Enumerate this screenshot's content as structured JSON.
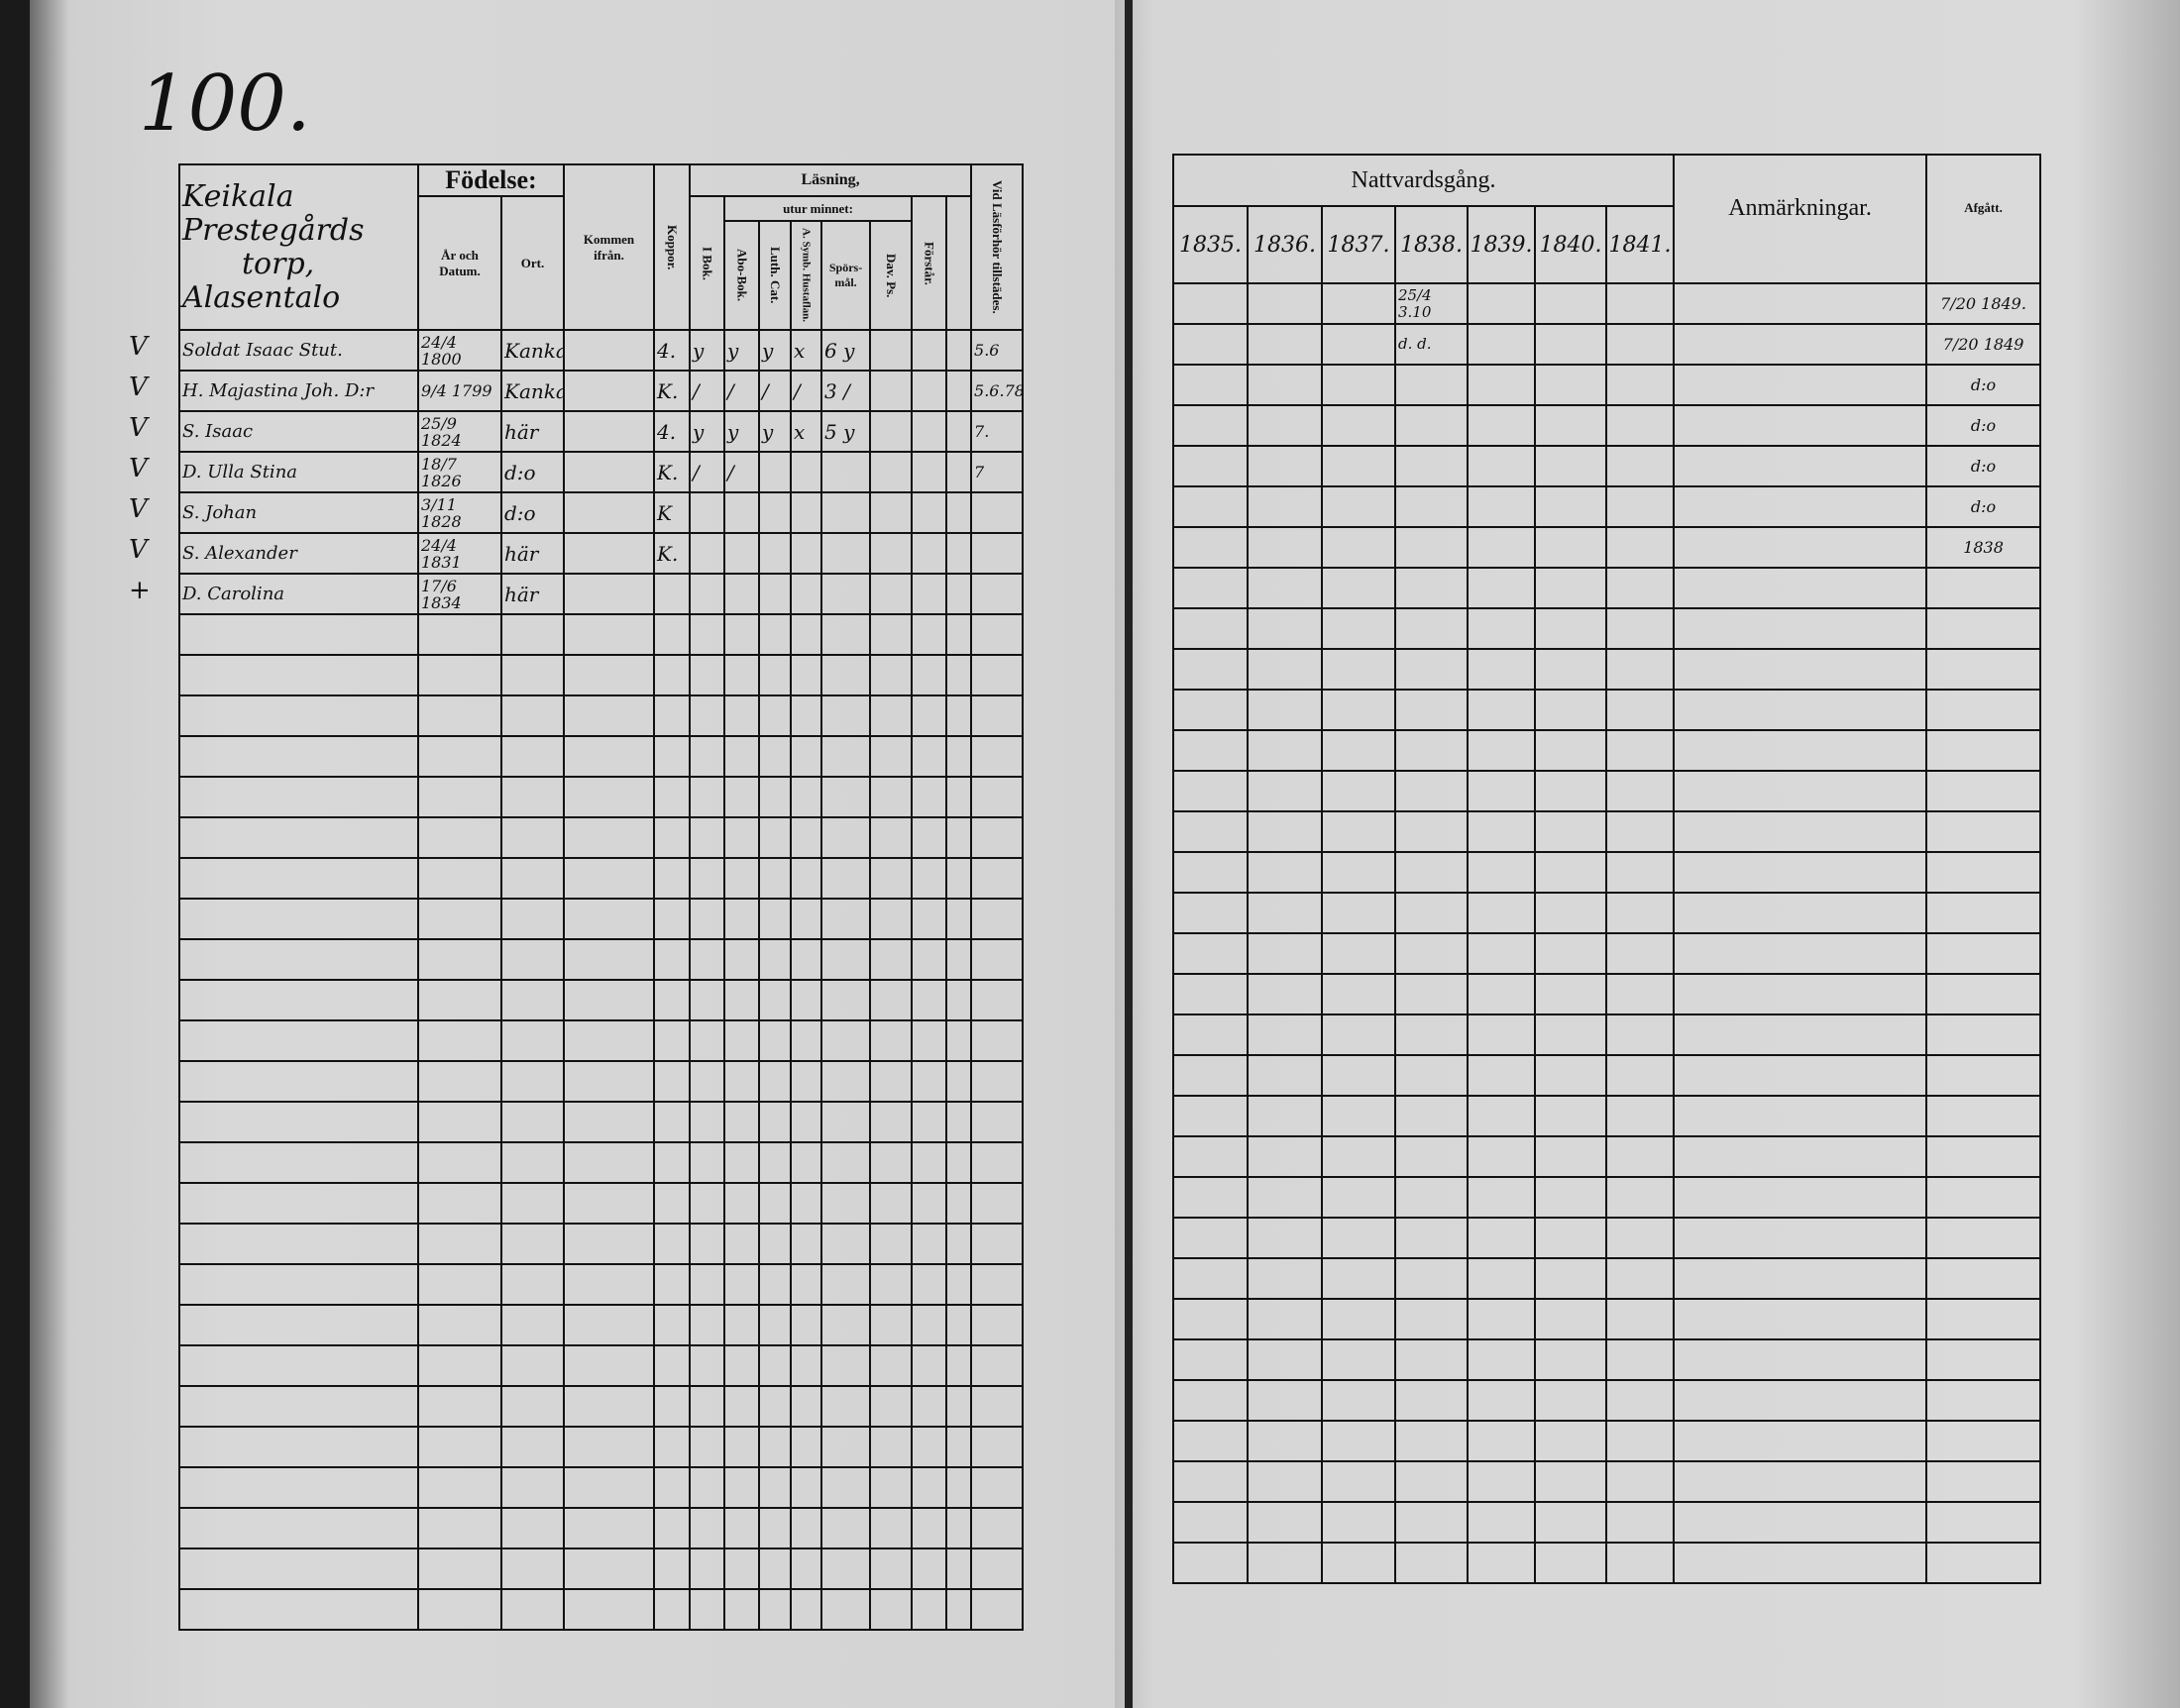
{
  "page_number": "100.",
  "left": {
    "parish_heading": [
      "Keikala",
      "Prestegårds",
      "torp,",
      "Alasentalo"
    ],
    "headers": {
      "fodelse": "Födelse:",
      "ar_och_datum": "År och Datum.",
      "ort": "Ort.",
      "kommen_ifran": "Kommen ifrån.",
      "koppor": "Koppor.",
      "lasning": "Läsning,",
      "i_bok": "I Bok.",
      "utur_minnet": "utur minnet:",
      "abo_bok": "Abo-Bok.",
      "luth_cat": "Luth. Cat.",
      "symb": "A. Symb. Hustaflan.",
      "sporsmal": "Spörs-mål.",
      "dav_ps": "Dav. Ps.",
      "forstar": "Förstår.",
      "vid_lasforhor": "Vid Läsförhör tillstädes."
    },
    "margin_marks": [
      "V",
      "V",
      "V",
      "V",
      "V",
      "V",
      "+"
    ],
    "rows": [
      {
        "name": "Soldat Isaac Stut.",
        "date": "24/4 1800",
        "ort": "Kankala",
        "kommen": "",
        "koppor": "4.",
        "i_bok": "y",
        "abo": "y",
        "luth": "y",
        "symb": "x",
        "sporsmal": "6 y",
        "dav": "",
        "forstar": "",
        "vid": "5.6"
      },
      {
        "name": "H. Majastina Joh. D:r",
        "date": "9/4 1799",
        "ort": "Kankala",
        "kommen": "",
        "koppor": "K.",
        "i_bok": "/",
        "abo": "/",
        "luth": "/",
        "symb": "/",
        "sporsmal": "3 /",
        "dav": "",
        "forstar": "",
        "vid": "5.6.78"
      },
      {
        "name": "S. Isaac",
        "date": "25/9 1824",
        "ort": "här",
        "kommen": "",
        "koppor": "4.",
        "i_bok": "y",
        "abo": "y",
        "luth": "y",
        "symb": "x",
        "sporsmal": "5 y",
        "dav": "",
        "forstar": "",
        "vid": "7."
      },
      {
        "name": "D. Ulla Stina",
        "date": "18/7 1826",
        "ort": "d:o",
        "kommen": "",
        "koppor": "K.",
        "i_bok": "/",
        "abo": "/",
        "luth": "",
        "symb": "",
        "sporsmal": "",
        "dav": "",
        "forstar": "",
        "vid": "7"
      },
      {
        "name": "S. Johan",
        "date": "3/11 1828",
        "ort": "d:o",
        "kommen": "",
        "koppor": "K",
        "i_bok": "",
        "abo": "",
        "luth": "",
        "symb": "",
        "sporsmal": "",
        "dav": "",
        "forstar": "",
        "vid": ""
      },
      {
        "name": "S. Alexander",
        "date": "24/4 1831",
        "ort": "här",
        "kommen": "",
        "koppor": "K.",
        "i_bok": "",
        "abo": "",
        "luth": "",
        "symb": "",
        "sporsmal": "",
        "dav": "",
        "forstar": "",
        "vid": ""
      },
      {
        "name": "D. Carolina",
        "date": "17/6 1834",
        "ort": "här",
        "kommen": "",
        "koppor": "",
        "i_bok": "",
        "abo": "",
        "luth": "",
        "symb": "",
        "sporsmal": "",
        "dav": "",
        "forstar": "",
        "vid": ""
      }
    ]
  },
  "right": {
    "headers": {
      "nattvardsgang": "Nattvardsgång.",
      "years": [
        "1835.",
        "1836.",
        "1837.",
        "1838.",
        "1839.",
        "1840.",
        "1841."
      ],
      "anmarkningar": "Anmärkningar.",
      "afgatt": "Afgått."
    },
    "rows": [
      {
        "years": [
          "",
          "",
          "",
          "25/4 3.10",
          "",
          "",
          ""
        ],
        "anm": "",
        "afgatt": "7/20 1849."
      },
      {
        "years": [
          "",
          "",
          "",
          "d. d.",
          "",
          "",
          ""
        ],
        "anm": "",
        "afgatt": "7/20 1849"
      },
      {
        "years": [
          "",
          "",
          "",
          "",
          "",
          "",
          ""
        ],
        "anm": "",
        "afgatt": "d:o"
      },
      {
        "years": [
          "",
          "",
          "",
          "",
          "",
          "",
          ""
        ],
        "anm": "",
        "afgatt": "d:o"
      },
      {
        "years": [
          "",
          "",
          "",
          "",
          "",
          "",
          ""
        ],
        "anm": "",
        "afgatt": "d:o"
      },
      {
        "years": [
          "",
          "",
          "",
          "",
          "",
          "",
          ""
        ],
        "anm": "",
        "afgatt": "d:o"
      },
      {
        "years": [
          "",
          "",
          "",
          "",
          "",
          "",
          ""
        ],
        "anm": "",
        "afgatt": "1838"
      }
    ]
  }
}
